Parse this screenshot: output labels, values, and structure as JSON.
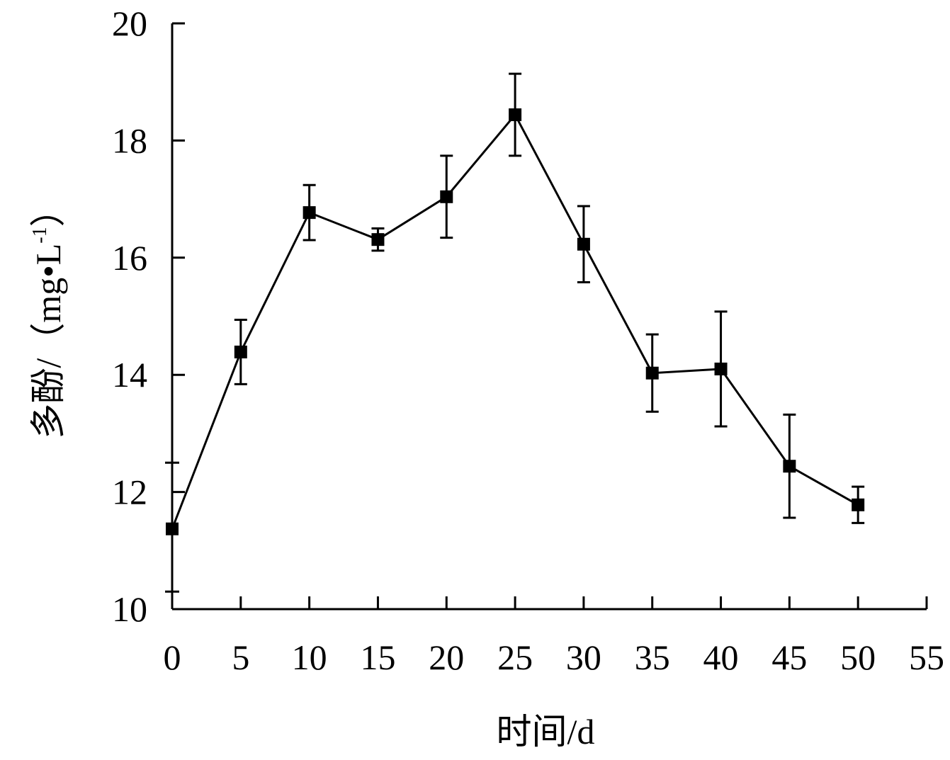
{
  "chart_data": {
    "type": "line",
    "title": "",
    "xlabel": "时间/d",
    "ylabel": "多酚/（mg·L-1）",
    "ylabel_parts": {
      "main": "多酚/（mg•L",
      "sup": "-1",
      "close": "）"
    },
    "xlim": [
      0,
      55
    ],
    "ylim": [
      10,
      20
    ],
    "x_ticks": [
      "0",
      "5",
      "10",
      "15",
      "20",
      "25",
      "30",
      "35",
      "40",
      "45",
      "50",
      "55"
    ],
    "y_ticks": [
      "10",
      "12",
      "14",
      "16",
      "18",
      "20"
    ],
    "grid": false,
    "legend": "none",
    "marker": "square",
    "color": "#000000",
    "series": [
      {
        "x": [
          0,
          5,
          10,
          15,
          20,
          25,
          30,
          35,
          40,
          45,
          50
        ],
        "y": [
          11.37,
          14.39,
          16.77,
          16.31,
          17.04,
          18.44,
          16.23,
          14.03,
          14.1,
          12.44,
          11.78
        ],
        "error": [
          0,
          0.55,
          0.47,
          0.19,
          0.7,
          0.7,
          0.65,
          0.66,
          0.98,
          0.88,
          0.31
        ]
      }
    ]
  }
}
